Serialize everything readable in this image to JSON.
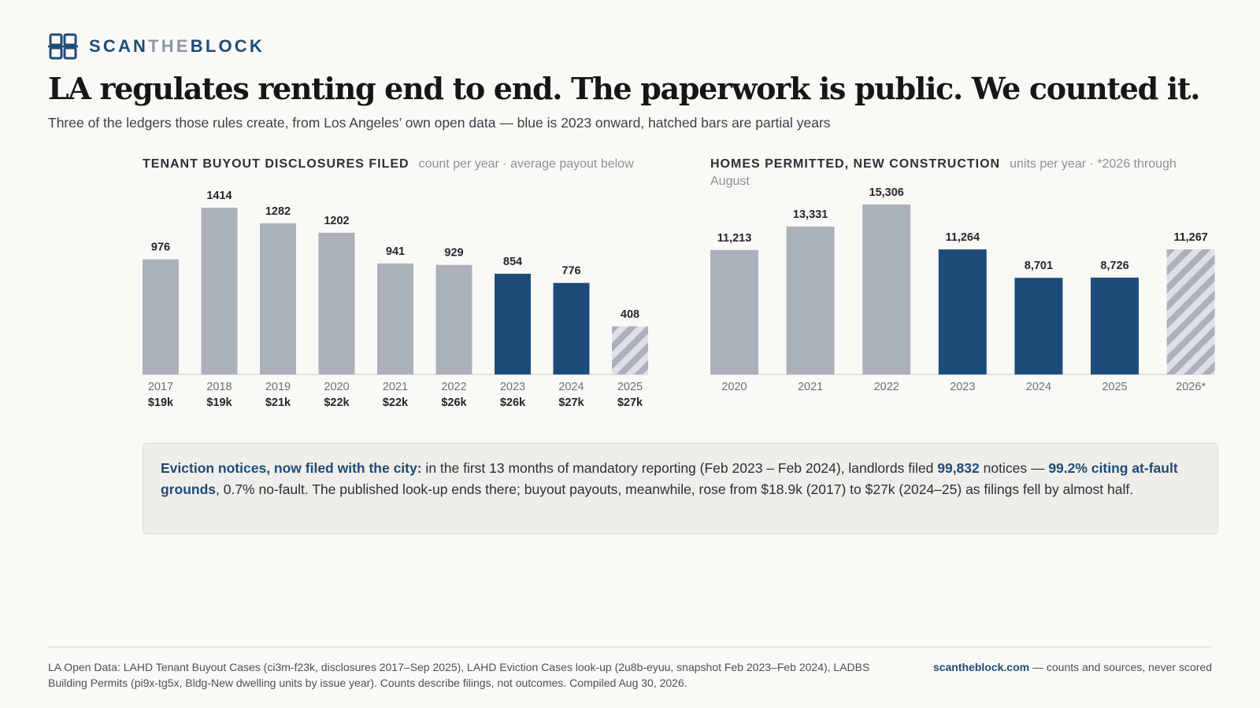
{
  "brand": {
    "part1": "SCAN",
    "part2": "THE",
    "part3": "BLOCK"
  },
  "headline": "LA regulates renting end to end. The paperwork is public. We counted it.",
  "subhead": "Three of the ledgers those rules create, from Los Angeles’ own open data — blue is 2023 onward, hatched bars are partial years",
  "colors": {
    "brand": "#1d4c79",
    "recent_bar": "#1d4c79",
    "past_bar": "#abb1bb",
    "partial_hatch": "#1d4c79"
  },
  "icons": {
    "logo": "grid-logo-icon"
  },
  "chart_data": [
    {
      "type": "bar",
      "title": "TENANT BUYOUT DISCLOSURES FILED",
      "subtitle": "count per year · average payout below",
      "categories": [
        "2017",
        "2018",
        "2019",
        "2020",
        "2021",
        "2022",
        "2023",
        "2024",
        "2025"
      ],
      "values": [
        976,
        1414,
        1282,
        1202,
        941,
        929,
        854,
        776,
        408
      ],
      "value_labels": [
        "976",
        "1414",
        "1282",
        "1202",
        "941",
        "929",
        "854",
        "776",
        "408"
      ],
      "secondary_labels": [
        "$19k",
        "$19k",
        "$21k",
        "$22k",
        "$22k",
        "$26k",
        "$26k",
        "$27k",
        "$27k"
      ],
      "highlighted": [
        false,
        false,
        false,
        false,
        false,
        false,
        true,
        true,
        false
      ],
      "partial": [
        false,
        false,
        false,
        false,
        false,
        false,
        false,
        false,
        true
      ],
      "ylim": [
        0,
        1414
      ],
      "grid": false,
      "legend": "none"
    },
    {
      "type": "bar",
      "title": "HOMES PERMITTED, NEW CONSTRUCTION",
      "subtitle": "units per year · *2026 through August",
      "categories": [
        "2020",
        "2021",
        "2022",
        "2023",
        "2024",
        "2025",
        "2026*"
      ],
      "values": [
        11213,
        13331,
        15306,
        11264,
        8701,
        8726,
        11267
      ],
      "value_labels": [
        "11,213",
        "13,331",
        "15,306",
        "11,264",
        "8,701",
        "8,726",
        "11,267"
      ],
      "highlighted": [
        false,
        false,
        false,
        true,
        true,
        true,
        false
      ],
      "partial": [
        false,
        false,
        false,
        false,
        false,
        false,
        true
      ],
      "ylim": [
        0,
        15306
      ],
      "grid": false,
      "legend": "none"
    }
  ],
  "callout": {
    "lead": "Eviction notices, now filed with the city:",
    "text1": " in the first 13 months of mandatory reporting (Feb 2023 – Feb 2024), landlords filed ",
    "count": "99,832",
    "text2": " notices — ",
    "pct": "99.2% citing at-fault grounds",
    "text3": ", 0.7% no-fault. The published look-up ends there; buyout payouts, meanwhile, rose from $18.9k (2017) to $27k (2024–25) as filings fell by almost half."
  },
  "footer": {
    "sources": "LA Open Data: LAHD Tenant Buyout Cases (ci3m-f23k, disclosures 2017–Sep 2025), LAHD Eviction Cases look-up (2u8b-eyuu, snapshot Feb 2023–Feb 2024), LADBS Building Permits (pi9x-tg5x, Bldg-New dwelling units by issue year). Counts describe filings, not outcomes. Compiled Aug 30, 2026.",
    "site": "scantheblock.com",
    "tagline": " — counts and sources, never scored"
  }
}
